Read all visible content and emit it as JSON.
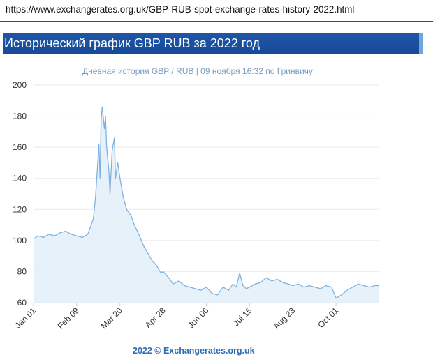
{
  "browser": {
    "url": "https://www.exchangerates.org.uk/GBP-RUB-spot-exchange-rates-history-2022.html"
  },
  "banner": {
    "title": "Исторический график GBP RUB за 2022 год"
  },
  "footer": {
    "text": "2022 © Exchangerates.org.uk"
  },
  "colors": {
    "banner": "#1f56a8",
    "line": "#7fb2de",
    "fill": "#e3f0fa",
    "subtitle": "#7a9cbf",
    "footer": "#2f6db5"
  },
  "chart_data": {
    "type": "area",
    "title": "",
    "subtitle": "Дневная история GBP / RUB | 09 ноября 16:32 по Гринвичу",
    "xlabel": "",
    "ylabel": "",
    "ylim": [
      60,
      200
    ],
    "yticks": [
      60,
      80,
      100,
      120,
      140,
      160,
      180,
      200
    ],
    "grid": true,
    "legend": "none",
    "xticks": [
      "Jan 01",
      "Feb 09",
      "Mar 20",
      "Apr 28",
      "Jun 06",
      "Jul 15",
      "Aug 23",
      "Oct 01"
    ],
    "x": [
      "Jan 01",
      "Jan 05",
      "Jan 10",
      "Jan 15",
      "Jan 20",
      "Jan 25",
      "Jan 30",
      "Feb 04",
      "Feb 09",
      "Feb 14",
      "Feb 19",
      "Feb 22",
      "Feb 24",
      "Feb 26",
      "Feb 28",
      "Mar 01",
      "Mar 02",
      "Mar 03",
      "Mar 04",
      "Mar 06",
      "Mar 07",
      "Mar 08",
      "Mar 10",
      "Mar 11",
      "Mar 13",
      "Mar 15",
      "Mar 16",
      "Mar 18",
      "Mar 20",
      "Mar 23",
      "Mar 26",
      "Mar 30",
      "Apr 02",
      "Apr 06",
      "Apr 10",
      "Apr 14",
      "Apr 18",
      "Apr 22",
      "Apr 26",
      "Apr 28",
      "May 03",
      "May 07",
      "May 12",
      "May 17",
      "May 22",
      "May 27",
      "Jun 01",
      "Jun 06",
      "Jun 11",
      "Jun 16",
      "Jun 21",
      "Jun 26",
      "Jun 30",
      "Jul 03",
      "Jul 06",
      "Jul 09",
      "Jul 12",
      "Jul 15",
      "Jul 20",
      "Jul 25",
      "Jul 30",
      "Aug 04",
      "Aug 09",
      "Aug 14",
      "Aug 19",
      "Aug 23",
      "Aug 28",
      "Sep 02",
      "Sep 07",
      "Sep 12",
      "Sep 17",
      "Sep 22",
      "Sep 27",
      "Oct 01",
      "Oct 06",
      "Oct 11",
      "Oct 16",
      "Oct 21",
      "Oct 26",
      "Oct 31",
      "Nov 05",
      "Nov 09"
    ],
    "series": [
      {
        "values": [
          101,
          103,
          102,
          104,
          103,
          105,
          106,
          104,
          103,
          102,
          104,
          110,
          114,
          128,
          150,
          162,
          140,
          178,
          186,
          172,
          180,
          160,
          145,
          130,
          158,
          166,
          140,
          150,
          140,
          128,
          120,
          116,
          110,
          104,
          97,
          92,
          87,
          84,
          79,
          80,
          76,
          72,
          74,
          71,
          70,
          69,
          68,
          70,
          66,
          65,
          70,
          68,
          72,
          70,
          79,
          71,
          69,
          70,
          72,
          73,
          76,
          74,
          75,
          73,
          72,
          71,
          72,
          70,
          71,
          70,
          69,
          71,
          70,
          63,
          65,
          68,
          70,
          72,
          71,
          70,
          71,
          71
        ]
      }
    ]
  }
}
